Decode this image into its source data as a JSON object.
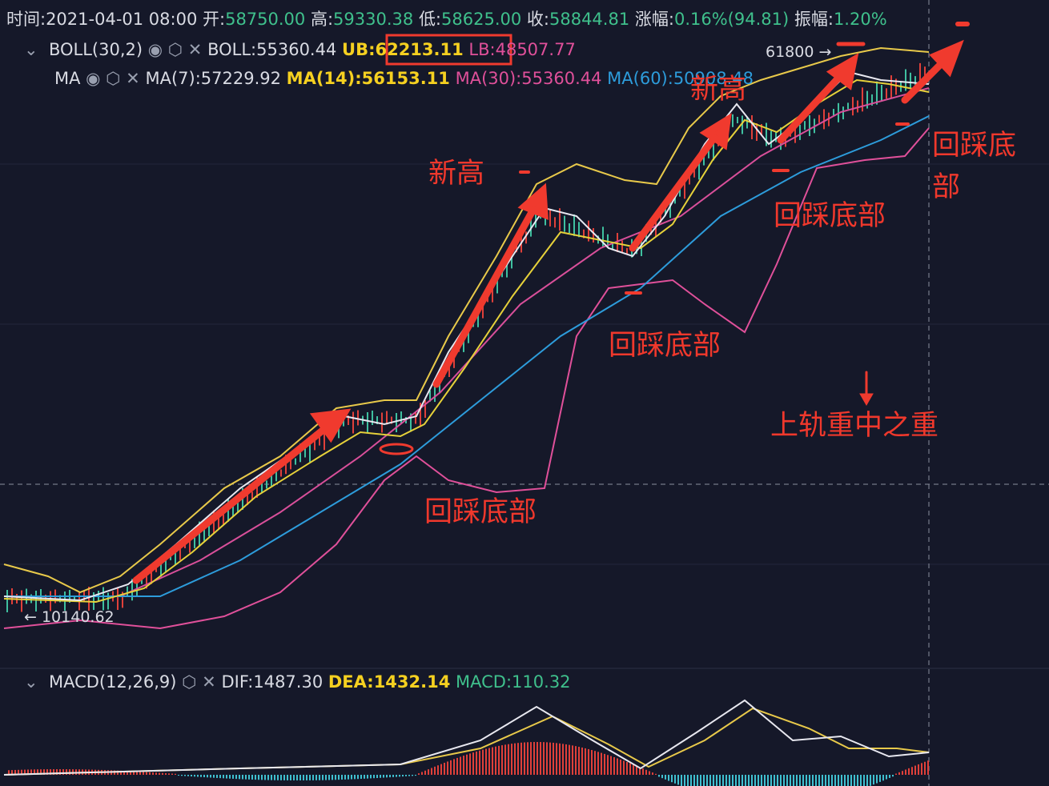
{
  "header": {
    "time": "时间:2021-04-01 08:00",
    "open_label": "开:",
    "open": "58750.00",
    "high_label": "高:",
    "high": "59330.38",
    "low_label": "低:",
    "low": "58625.00",
    "close_label": "收:",
    "close": "58844.81",
    "change_label": "涨幅:",
    "change": "0.16%(94.81)",
    "amplitude_label": "振幅:",
    "amplitude": "1.20%"
  },
  "boll": {
    "name": "BOLL(30,2)",
    "mid": "BOLL:55360.44",
    "ub": "UB:62213.11",
    "lb": "LB:48507.77"
  },
  "ma": {
    "name": "MA",
    "ma7": "MA(7):57229.92",
    "ma14": "MA(14):56153.11",
    "ma30": "MA(30):55360.44",
    "ma60": "MA(60):50908.48"
  },
  "price_marks": {
    "high": "61800 →",
    "low": "← 10140.62"
  },
  "macd": {
    "name": "MACD(12,26,9)",
    "dif": "DIF:1487.30",
    "dea": "DEA:1432.14",
    "macd": "MACD:110.32"
  },
  "annotations": {
    "new_high_1": "新高",
    "new_high_2": "新高",
    "pullback_1": "回踩底部",
    "pullback_2": "回踩底部",
    "pullback_3": "回踩底部",
    "pullback_4_line1": "回踩底",
    "pullback_4_line2": "部",
    "upper_band": "上轨重中之重"
  }
}
